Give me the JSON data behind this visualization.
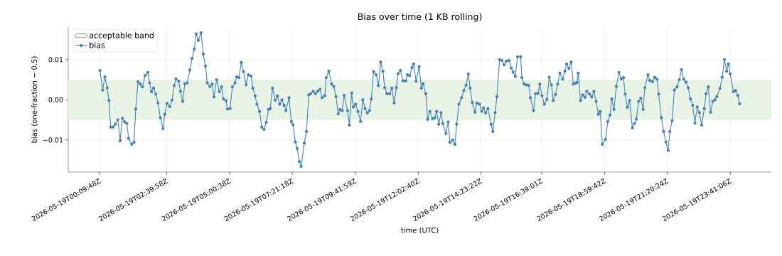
{
  "chart_data": {
    "type": "line",
    "title": "Bias over time (1 KB rolling)",
    "xlabel": "time (UTC)",
    "ylabel": "bias (one-fraction − 0.5)",
    "x": [
      "2026-05-19T00:11",
      "2026-05-19T00:17",
      "2026-05-19T00:22",
      "2026-05-19T00:27",
      "2026-05-19T00:31",
      "2026-05-19T00:35",
      "2026-05-19T00:40",
      "2026-05-19T00:45",
      "2026-05-19T00:51",
      "2026-05-19T00:56",
      "2026-05-19T01:01",
      "2026-05-19T01:06",
      "2026-05-19T01:11",
      "2026-05-19T01:15",
      "2026-05-19T01:22",
      "2026-05-19T01:27",
      "2026-05-19T01:31",
      "2026-05-19T01:36",
      "2026-05-19T01:41",
      "2026-05-19T01:46",
      "2026-05-19T01:52",
      "2026-05-19T01:58",
      "2026-05-19T02:02",
      "2026-05-19T02:06",
      "2026-05-19T02:11",
      "2026-05-19T02:16",
      "2026-05-19T02:21",
      "2026-05-19T02:26",
      "2026-05-19T02:32",
      "2026-05-19T02:36",
      "2026-05-19T02:41",
      "2026-05-19T02:47",
      "2026-05-19T02:52",
      "2026-05-19T02:57",
      "2026-05-19T03:01",
      "2026-05-19T03:07",
      "2026-05-19T03:11",
      "2026-05-19T03:16",
      "2026-05-19T03:21",
      "2026-05-19T03:26",
      "2026-05-19T03:32",
      "2026-05-19T03:37",
      "2026-05-19T03:42",
      "2026-05-19T03:46",
      "2026-05-19T03:51",
      "2026-05-19T03:57",
      "2026-05-19T04:02",
      "2026-05-19T04:07",
      "2026-05-19T04:11",
      "2026-05-19T04:17",
      "2026-05-19T04:22",
      "2026-05-19T04:26",
      "2026-05-19T04:32",
      "2026-05-19T04:38",
      "2026-05-19T04:43",
      "2026-05-19T04:47",
      "2026-05-19T04:53",
      "2026-05-19T04:56",
      "2026-05-19T05:02",
      "2026-05-19T05:07",
      "2026-05-19T05:13",
      "2026-05-19T05:17",
      "2026-05-19T05:22",
      "2026-05-19T05:27",
      "2026-05-19T05:32",
      "2026-05-19T05:38",
      "2026-05-19T05:43",
      "2026-05-19T05:49",
      "2026-05-19T05:53",
      "2026-05-19T05:58",
      "2026-05-19T06:02",
      "2026-05-19T06:08",
      "2026-05-19T06:13",
      "2026-05-19T06:18",
      "2026-05-19T06:23",
      "2026-05-19T06:28",
      "2026-05-19T06:32",
      "2026-05-19T06:37",
      "2026-05-19T06:43",
      "2026-05-19T06:48",
      "2026-05-19T06:53",
      "2026-05-19T06:58",
      "2026-05-19T07:03",
      "2026-05-19T07:07",
      "2026-05-19T07:14",
      "2026-05-19T07:19",
      "2026-05-19T07:23",
      "2026-05-19T07:28",
      "2026-05-19T07:32",
      "2026-05-19T07:37",
      "2026-05-19T07:41",
      "2026-05-19T07:48",
      "2026-05-19T07:53",
      "2026-05-19T07:58",
      "2026-05-19T08:02",
      "2026-05-19T08:08",
      "2026-05-19T08:13",
      "2026-05-19T08:18",
      "2026-05-19T08:23",
      "2026-05-19T08:28",
      "2026-05-19T08:34",
      "2026-05-19T08:37",
      "2026-05-19T08:43",
      "2026-05-19T08:49",
      "2026-05-19T08:54",
      "2026-05-19T08:59",
      "2026-05-19T09:04",
      "2026-05-19T09:08",
      "2026-05-19T09:13",
      "2026-05-19T09:17",
      "2026-05-19T09:25",
      "2026-05-19T09:29",
      "2026-05-19T09:34",
      "2026-05-19T09:38",
      "2026-05-19T09:43",
      "2026-05-19T09:48",
      "2026-05-19T09:54",
      "2026-05-19T09:59",
      "2026-05-19T10:04",
      "2026-05-19T10:09",
      "2026-05-19T10:14",
      "2026-05-19T10:18",
      "2026-05-19T10:23",
      "2026-05-19T10:29",
      "2026-05-19T10:34",
      "2026-05-19T10:39",
      "2026-05-19T10:44",
      "2026-05-19T10:48",
      "2026-05-19T10:53",
      "2026-05-19T10:59",
      "2026-05-19T11:04",
      "2026-05-19T11:09",
      "2026-05-19T11:14",
      "2026-05-19T11:18",
      "2026-05-19T11:23",
      "2026-05-19T11:29",
      "2026-05-19T11:35",
      "2026-05-19T11:39",
      "2026-05-19T11:44",
      "2026-05-19T11:49",
      "2026-05-19T11:53",
      "2026-05-19T11:58",
      "2026-05-19T12:05",
      "2026-05-19T12:10",
      "2026-05-19T12:14",
      "2026-05-19T12:20",
      "2026-05-19T12:24",
      "2026-05-19T12:29",
      "2026-05-19T12:35",
      "2026-05-19T12:40",
      "2026-05-19T12:44",
      "2026-05-19T12:49",
      "2026-05-19T12:54",
      "2026-05-19T12:58",
      "2026-05-19T13:05",
      "2026-05-19T13:10",
      "2026-05-19T13:14",
      "2026-05-19T13:20",
      "2026-05-19T13:25",
      "2026-05-19T13:29",
      "2026-05-19T13:34",
      "2026-05-19T13:40",
      "2026-05-19T13:45",
      "2026-05-19T13:50",
      "2026-05-19T13:55",
      "2026-05-19T13:59",
      "2026-05-19T14:04",
      "2026-05-19T14:10",
      "2026-05-19T14:14",
      "2026-05-19T14:20",
      "2026-05-19T14:25",
      "2026-05-19T14:29",
      "2026-05-19T14:34",
      "2026-05-19T14:39",
      "2026-05-19T14:46",
      "2026-05-19T14:50",
      "2026-05-19T14:55",
      "2026-05-19T14:59",
      "2026-05-19T15:05",
      "2026-05-19T15:10",
      "2026-05-19T15:15",
      "2026-05-19T15:20",
      "2026-05-19T15:26",
      "2026-05-19T15:31",
      "2026-05-19T15:35",
      "2026-05-19T15:40",
      "2026-05-19T15:45",
      "2026-05-19T15:52",
      "2026-05-19T15:55",
      "2026-05-19T16:00",
      "2026-05-19T16:05",
      "2026-05-19T16:10",
      "2026-05-19T16:14",
      "2026-05-19T16:21",
      "2026-05-19T16:25",
      "2026-05-19T16:31",
      "2026-05-19T16:35",
      "2026-05-19T16:40",
      "2026-05-19T16:45",
      "2026-05-19T16:51",
      "2026-05-19T16:56",
      "2026-05-19T17:01",
      "2026-05-19T17:05",
      "2026-05-19T17:10",
      "2026-05-19T17:15",
      "2026-05-19T17:20",
      "2026-05-19T17:26",
      "2026-05-19T17:31",
      "2026-05-19T17:35",
      "2026-05-19T17:40",
      "2026-05-19T17:45",
      "2026-05-19T17:50",
      "2026-05-19T17:55",
      "2026-05-19T17:58",
      "2026-05-19T18:01",
      "2026-05-19T18:06",
      "2026-05-19T18:11",
      "2026-05-19T18:16",
      "2026-05-19T18:20",
      "2026-05-19T18:26",
      "2026-05-19T18:31",
      "2026-05-19T18:36",
      "2026-05-19T18:41",
      "2026-05-19T18:46",
      "2026-05-19T18:50",
      "2026-05-19T18:55",
      "2026-05-19T19:02",
      "2026-05-19T19:07",
      "2026-05-19T19:12",
      "2026-05-19T19:16",
      "2026-05-19T19:21",
      "2026-05-19T19:26",
      "2026-05-19T19:32",
      "2026-05-19T19:37",
      "2026-05-19T19:42",
      "2026-05-19T19:46",
      "2026-05-19T19:51",
      "2026-05-19T19:56",
      "2026-05-19T20:02",
      "2026-05-19T20:07",
      "2026-05-19T20:11",
      "2026-05-19T20:16",
      "2026-05-19T20:21",
      "2026-05-19T20:26",
      "2026-05-19T20:30",
      "2026-05-19T20:37",
      "2026-05-19T20:41",
      "2026-05-19T20:47",
      "2026-05-19T20:52",
      "2026-05-19T20:57",
      "2026-05-19T21:01",
      "2026-05-19T21:07",
      "2026-05-19T21:12",
      "2026-05-19T21:17",
      "2026-05-19T21:22",
      "2026-05-19T21:26",
      "2026-05-19T21:31",
      "2026-05-19T21:36",
      "2026-05-19T21:42",
      "2026-05-19T21:47",
      "2026-05-19T21:52",
      "2026-05-19T21:57",
      "2026-05-19T22:02",
      "2026-05-19T22:07",
      "2026-05-19T22:12",
      "2026-05-19T22:17",
      "2026-05-19T22:22",
      "2026-05-19T22:27",
      "2026-05-19T22:32",
      "2026-05-19T22:37",
      "2026-05-19T22:43",
      "2026-05-19T22:47",
      "2026-05-19T22:52",
      "2026-05-19T22:57",
      "2026-05-19T23:02",
      "2026-05-19T23:07",
      "2026-05-19T23:11",
      "2026-05-19T23:18",
      "2026-05-19T23:23",
      "2026-05-19T23:28",
      "2026-05-19T23:33",
      "2026-05-19T23:37",
      "2026-05-19T23:41",
      "2026-05-19T23:48",
      "2026-05-19T23:53",
      "2026-05-19T23:58",
      "2026-05-20T00:02"
    ],
    "series": [
      {
        "name": "bias",
        "color": "#4682b4",
        "values": [
          0.0073,
          0.0024,
          0.0057,
          0.003,
          -0.0002,
          -0.0068,
          -0.0068,
          -0.0061,
          -0.005,
          -0.0102,
          -0.0046,
          -0.0055,
          -0.0059,
          -0.0096,
          -0.0111,
          -0.0106,
          -0.0023,
          0.0045,
          0.0039,
          0.0032,
          0.006,
          0.0068,
          0.0042,
          0.002,
          0.0029,
          0.0014,
          -0.0008,
          -0.0045,
          -0.0072,
          -0.0036,
          -0.0009,
          -0.0017,
          -0.0001,
          0.0035,
          0.0052,
          0.0046,
          0.0021,
          -0.0004,
          0.004,
          0.0042,
          0.0074,
          0.0103,
          0.0126,
          0.0164,
          0.0148,
          0.0167,
          0.0114,
          0.0084,
          0.0042,
          0.0033,
          0.0039,
          0.0007,
          0.005,
          0.002,
          0.0032,
          0.0002,
          -0.0002,
          -0.0023,
          -0.0022,
          0.0032,
          0.0042,
          0.0057,
          0.0055,
          0.0093,
          0.007,
          0.0037,
          0.0062,
          0.0059,
          0.0029,
          0.001,
          -0.0011,
          -0.0029,
          -0.0068,
          -0.0074,
          -0.0056,
          -0.0024,
          -0.0022,
          0.0029,
          -0.0001,
          0.0009,
          -0.0011,
          0.0,
          -0.0014,
          -0.0027,
          0.0005,
          -0.0054,
          -0.0062,
          -0.0105,
          -0.0121,
          -0.0154,
          -0.0166,
          -0.0108,
          -0.0079,
          0.0012,
          0.0015,
          0.0021,
          0.0015,
          0.0021,
          0.0026,
          0.0005,
          0.001,
          0.0055,
          0.0071,
          0.0039,
          0.0033,
          0.0008,
          -0.0035,
          -0.0024,
          -0.0027,
          0.0011,
          -0.0027,
          -0.0063,
          0.0017,
          -0.0018,
          -0.0011,
          -0.0029,
          -0.0054,
          0.0,
          -0.0022,
          -0.0033,
          -0.0027,
          0.0002,
          0.007,
          0.0062,
          0.0035,
          0.0094,
          0.0071,
          0.003,
          0.0015,
          0.0015,
          0.0029,
          -0.0008,
          0.003,
          0.0065,
          0.0073,
          0.0047,
          0.0047,
          0.0062,
          0.006,
          0.008,
          0.0089,
          0.0046,
          0.0082,
          0.0029,
          0.004,
          0.0015,
          -0.0049,
          -0.0029,
          -0.0047,
          -0.0045,
          -0.0029,
          -0.0061,
          -0.0032,
          -0.0059,
          -0.0084,
          -0.0055,
          -0.0106,
          -0.01,
          -0.0111,
          -0.0061,
          -0.0011,
          0.0005,
          0.0023,
          0.0036,
          0.0064,
          0.0029,
          -0.0007,
          -0.0031,
          -0.0008,
          -0.0011,
          -0.0029,
          -0.002,
          -0.0033,
          -0.0022,
          -0.0061,
          -0.0079,
          -0.0032,
          0.0008,
          0.01,
          0.0098,
          0.0087,
          0.0096,
          0.0098,
          0.0079,
          0.0069,
          0.0058,
          0.0107,
          0.0107,
          0.0055,
          0.0039,
          0.0037,
          0.0036,
          0.0005,
          -0.0027,
          0.0015,
          0.0016,
          0.0039,
          0.001,
          -0.0011,
          0.0001,
          0.0056,
          0.0037,
          -0.0002,
          0.0013,
          0.0039,
          0.0066,
          0.0051,
          0.0071,
          0.0089,
          0.0078,
          0.0094,
          0.0039,
          0.0041,
          0.0043,
          0.0066,
          -0.0002,
          0.0012,
          0.0006,
          0.0021,
          0.0014,
          0.0007,
          0.0021,
          -0.0004,
          -0.0036,
          -0.0029,
          -0.0111,
          -0.0099,
          -0.0054,
          -0.0038,
          0.0002,
          -0.0024,
          0.0033,
          0.0068,
          0.0052,
          0.0055,
          0.0014,
          -0.0019,
          -0.0002,
          -0.007,
          -0.0059,
          -0.0048,
          -0.0004,
          0.0004,
          -0.0024,
          0.003,
          0.0062,
          0.0048,
          0.0045,
          0.0056,
          0.0051,
          0.0014,
          -0.0045,
          -0.0079,
          -0.0105,
          -0.0126,
          -0.0079,
          -0.0052,
          0.0024,
          0.0032,
          0.005,
          0.0075,
          0.0051,
          0.0044,
          0.003,
          0.0002,
          -0.0014,
          -0.0058,
          -0.0018,
          -0.0032,
          -0.0063,
          -0.0022,
          0.0015,
          0.0032,
          -0.0031,
          -0.0004,
          0.0,
          0.0008,
          0.0028,
          0.0056,
          0.01,
          0.0071,
          0.0089,
          0.0064,
          0.002,
          0.0023,
          0.0011,
          -0.001
        ]
      }
    ],
    "bands": [
      {
        "axis": "y",
        "from": -0.005,
        "to": 0.005,
        "label": "acceptable band",
        "color": "#e8f3e6"
      }
    ],
    "xlim": [
      "2026-05-18T23:00",
      "2026-05-20T01:13"
    ],
    "ylim": [
      -0.018,
      0.0181
    ],
    "xticks": [
      {
        "value": "2026-05-19T00:10",
        "label": "2026-05-19T00:09:48Z"
      },
      {
        "value": "2026-05-19T02:40",
        "label": "2026-05-19T02:39:58Z"
      },
      {
        "value": "2026-05-19T05:01",
        "label": "2026-05-19T05:00:38Z"
      },
      {
        "value": "2026-05-19T07:21",
        "label": "2026-05-19T07:21:18Z"
      },
      {
        "value": "2026-05-19T09:42",
        "label": "2026-05-19T09:41:59Z"
      },
      {
        "value": "2026-05-19T12:03",
        "label": "2026-05-19T12:02:40Z"
      },
      {
        "value": "2026-05-19T14:23",
        "label": "2026-05-19T14:23:22Z"
      },
      {
        "value": "2026-05-19T16:39",
        "label": "2026-05-19T16:39:01Z"
      },
      {
        "value": "2026-05-19T19:00",
        "label": "2026-05-19T18:59:42Z"
      },
      {
        "value": "2026-05-19T21:20",
        "label": "2026-05-19T21:20:24Z"
      },
      {
        "value": "2026-05-19T23:41",
        "label": "2026-05-19T23:41:06Z"
      }
    ],
    "yticks": [
      {
        "value": -0.01,
        "label": "−0.01"
      },
      {
        "value": 0.0,
        "label": "0.00"
      },
      {
        "value": 0.01,
        "label": "0.01"
      }
    ],
    "grid": true,
    "legend": "top left",
    "marker": "circle",
    "line_style": "solid"
  }
}
